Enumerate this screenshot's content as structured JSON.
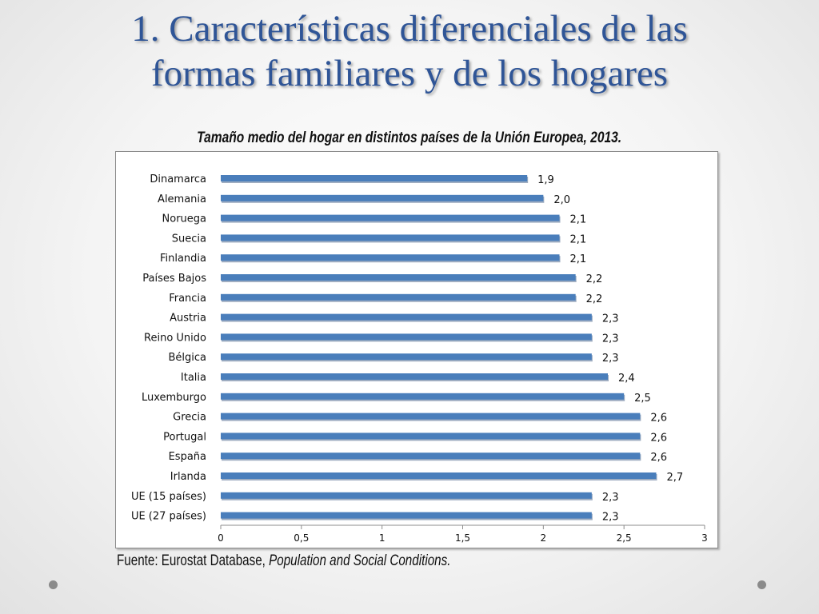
{
  "slide": {
    "title_line1": "1. Características diferenciales de las",
    "title_line2": "formas familiares y de los hogares",
    "source_prefix": "Fuente: Eurostat Database, ",
    "source_italic": "Population and Social Conditions."
  },
  "colors": {
    "title": "#2f5597",
    "bar": "#4a7ebb"
  },
  "chart_data": {
    "type": "bar",
    "orientation": "horizontal",
    "title": "Tamaño medio del hogar en distintos países de la Unión Europea, 2013.",
    "categories": [
      "Dinamarca",
      "Alemania",
      "Noruega",
      "Suecia",
      "Finlandia",
      "Países Bajos",
      "Francia",
      "Austria",
      "Reino Unido",
      "Bélgica",
      "Italia",
      "Luxemburgo",
      "Grecia",
      "Portugal",
      "España",
      "Irlanda",
      "UE (15 países)",
      "UE (27 países)"
    ],
    "values": [
      1.9,
      2.0,
      2.1,
      2.1,
      2.1,
      2.2,
      2.2,
      2.3,
      2.3,
      2.3,
      2.4,
      2.5,
      2.6,
      2.6,
      2.6,
      2.7,
      2.3,
      2.3
    ],
    "data_labels": [
      "1,9",
      "2,0",
      "2,1",
      "2,1",
      "2,1",
      "2,2",
      "2,2",
      "2,3",
      "2,3",
      "2,3",
      "2,4",
      "2,5",
      "2,6",
      "2,6",
      "2,6",
      "2,7",
      "2,3",
      "2,3"
    ],
    "xlim": [
      0,
      3
    ],
    "xticks": [
      0,
      0.5,
      1,
      1.5,
      2,
      2.5,
      3
    ],
    "xtick_labels": [
      "0",
      "0,5",
      "1",
      "1,5",
      "2",
      "2,5",
      "3"
    ],
    "grid": false,
    "legend": "none"
  }
}
